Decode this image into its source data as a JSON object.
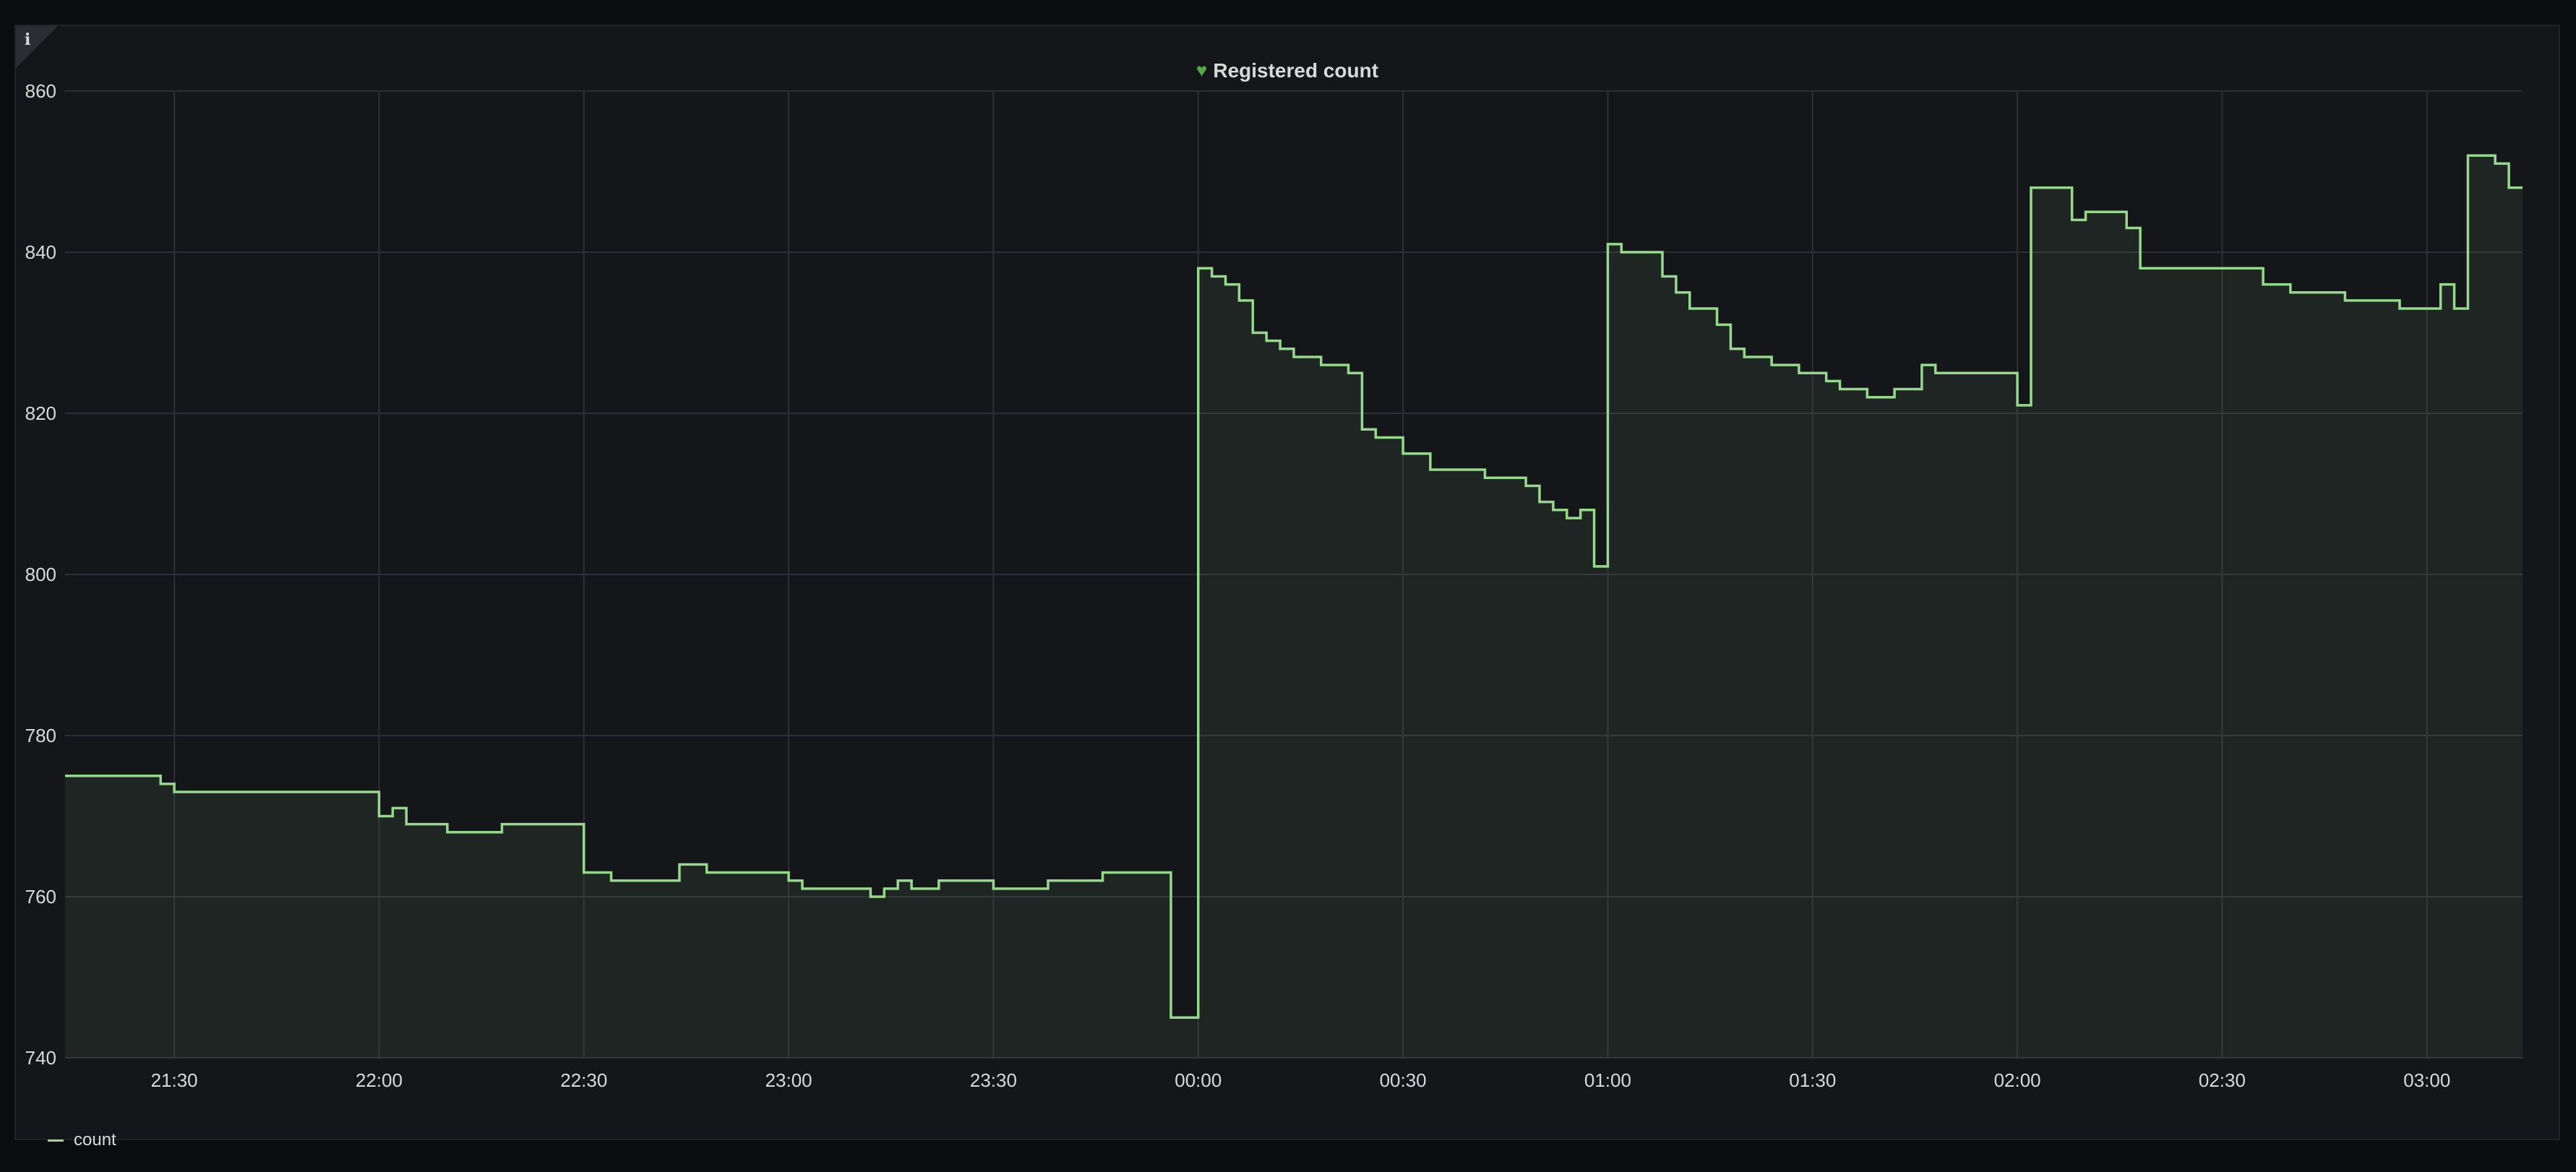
{
  "panel": {
    "title": "Registered count",
    "info_icon_glyph": "i",
    "title_icon": "heart-icon"
  },
  "colors": {
    "background": "#141619",
    "grid": "#2c2f34",
    "line": "#96d98d",
    "fill": "rgba(150,217,141,0.08)",
    "axis_text": "#d8d9da",
    "heart": "#56a64b"
  },
  "chart_data": {
    "type": "line",
    "title": "Registered count",
    "xlabel": "",
    "ylabel": "",
    "ylim": [
      740,
      860
    ],
    "yticks": [
      740,
      760,
      780,
      800,
      820,
      840,
      860
    ],
    "xlim": [
      "21:14",
      "03:14"
    ],
    "xticks": [
      "21:30",
      "22:00",
      "22:30",
      "23:00",
      "23:30",
      "00:00",
      "00:30",
      "01:00",
      "01:30",
      "02:00",
      "02:30",
      "03:00"
    ],
    "grid": true,
    "step": true,
    "fill": true,
    "legend": "bottom-left",
    "series": [
      {
        "name": "count",
        "x": [
          "21:14",
          "21:28",
          "21:30",
          "22:00",
          "22:02",
          "22:04",
          "22:10",
          "22:18",
          "22:30",
          "22:34",
          "22:44",
          "22:48",
          "22:52",
          "23:00",
          "23:02",
          "23:12",
          "23:14",
          "23:16",
          "23:18",
          "23:22",
          "23:30",
          "23:38",
          "23:46",
          "23:56",
          "24:00",
          "24:02",
          "24:04",
          "24:06",
          "24:08",
          "24:10",
          "24:12",
          "24:14",
          "24:18",
          "24:22",
          "24:24",
          "24:26",
          "24:28",
          "24:30",
          "24:34",
          "24:36",
          "24:42",
          "24:46",
          "24:48",
          "24:50",
          "24:52",
          "24:54",
          "24:56",
          "24:58",
          "25:00",
          "25:02",
          "25:08",
          "25:10",
          "25:12",
          "25:16",
          "25:18",
          "25:20",
          "25:24",
          "25:28",
          "25:32",
          "25:34",
          "25:38",
          "25:42",
          "25:46",
          "25:48",
          "25:50",
          "26:00",
          "26:02",
          "26:08",
          "26:10",
          "26:12",
          "26:16",
          "26:18",
          "26:26",
          "26:36",
          "26:38",
          "26:40",
          "26:48",
          "26:56",
          "26:58",
          "27:02",
          "27:04",
          "27:06",
          "27:10",
          "27:12"
        ],
        "values": [
          775,
          774,
          773,
          770,
          771,
          769,
          768,
          769,
          763,
          762,
          764,
          763,
          763,
          762,
          761,
          760,
          761,
          762,
          761,
          762,
          761,
          762,
          763,
          745,
          838,
          837,
          836,
          834,
          830,
          829,
          828,
          827,
          826,
          825,
          818,
          817,
          817,
          815,
          813,
          813,
          812,
          812,
          811,
          809,
          808,
          807,
          808,
          801,
          841,
          840,
          837,
          835,
          833,
          831,
          828,
          827,
          826,
          825,
          824,
          823,
          822,
          823,
          826,
          825,
          825,
          821,
          848,
          844,
          845,
          845,
          843,
          838,
          838,
          836,
          836,
          835,
          834,
          833,
          833,
          836,
          833,
          852,
          851,
          848
        ]
      }
    ]
  },
  "legend": {
    "series_label": "count"
  }
}
